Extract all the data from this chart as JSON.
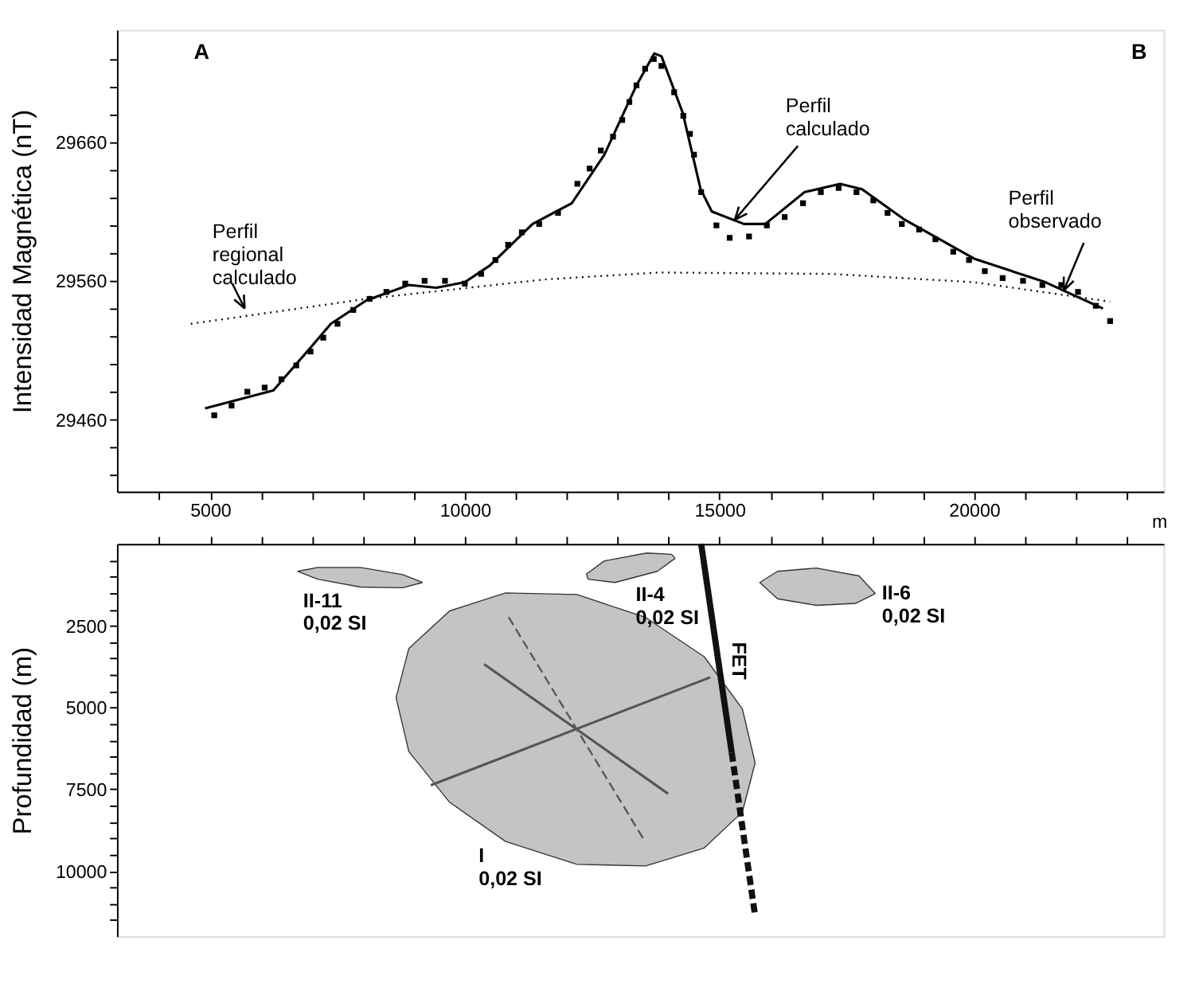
{
  "chart_data": [
    {
      "type": "line",
      "ylabel": "Intensidad Magnética (nT)",
      "xlabel": "m",
      "xlim": [
        3170,
        23720
      ],
      "ylim": [
        29408,
        29741
      ],
      "xticks": [
        {
          "value": 4000,
          "label": null
        },
        5000,
        {
          "value": 6000,
          "label": null
        },
        {
          "value": 7000,
          "label": null
        },
        {
          "value": 8000,
          "label": null
        },
        {
          "value": 9000,
          "label": null
        },
        10000,
        {
          "value": 11000,
          "label": null
        },
        {
          "value": 12000,
          "label": null
        },
        {
          "value": 13000,
          "label": null
        },
        {
          "value": 14000,
          "label": null
        },
        15000,
        {
          "value": 16000,
          "label": null
        },
        {
          "value": 17000,
          "label": null
        },
        {
          "value": 18000,
          "label": null
        },
        {
          "value": 19000,
          "label": null
        },
        20000,
        {
          "value": 21000,
          "label": null
        },
        {
          "value": 22000,
          "label": null
        },
        {
          "value": 23000,
          "label": null
        }
      ],
      "yticks": [
        {
          "value": 29420,
          "label": null
        },
        {
          "value": 29440,
          "label": null
        },
        29460,
        {
          "value": 29480,
          "label": null
        },
        {
          "value": 29500,
          "label": null
        },
        {
          "value": 29520,
          "label": null
        },
        {
          "value": 29540,
          "label": null
        },
        29560,
        {
          "value": 29580,
          "label": null
        },
        {
          "value": 29600,
          "label": null
        },
        {
          "value": 29620,
          "label": null
        },
        {
          "value": 29640,
          "label": null
        },
        29660,
        {
          "value": 29680,
          "label": null
        },
        {
          "value": 29700,
          "label": null
        },
        {
          "value": 29720,
          "label": null
        }
      ],
      "grid": false,
      "legend": false,
      "series": [
        {
          "type": "scatter",
          "marker": "square",
          "color": "#000000",
          "x": [
            5080,
            5420,
            5730,
            6070,
            6400,
            6690,
            6970,
            7220,
            7500,
            7810,
            8130,
            8460,
            8830,
            9210,
            9610,
            10000,
            10320,
            10600,
            10850,
            11120,
            11460,
            11830,
            12210,
            12450,
            12670,
            12910,
            13090,
            13230,
            13370,
            13540,
            13710,
            13860,
            14110,
            14290,
            14420,
            14500,
            14640,
            14940,
            15200,
            15580,
            15930,
            16280,
            16640,
            16990,
            17340,
            17690,
            18020,
            18300,
            18580,
            18920,
            19240,
            19590,
            19900,
            20210,
            20560,
            20960,
            21340,
            21710,
            22040,
            22390,
            22670
          ],
          "values": [
            29463,
            29470,
            29480,
            29483,
            29489,
            29499,
            29509,
            29519,
            29529,
            29539,
            29547,
            29552,
            29558,
            29560,
            29560,
            29558,
            29565,
            29575,
            29586,
            29595,
            29601,
            29609,
            29630,
            29641,
            29654,
            29664,
            29676,
            29689,
            29701,
            29713,
            29720,
            29715,
            29696,
            29679,
            29666,
            29651,
            29624,
            29600,
            29591,
            29592,
            29600,
            29606,
            29616,
            29624,
            29627,
            29624,
            29618,
            29609,
            29601,
            29597,
            29590,
            29581,
            29575,
            29567,
            29562,
            29560,
            29557,
            29557,
            29552,
            29542,
            29531
          ]
        },
        {
          "line_style": "solid",
          "color": "#000000",
          "x": [
            4900,
            6240,
            6950,
            7370,
            8070,
            8900,
            9440,
            10000,
            10490,
            11330,
            12100,
            12740,
            13370,
            13720,
            13860,
            14280,
            14630,
            14850,
            15480,
            15900,
            16670,
            17370,
            17800,
            18640,
            20000,
            21400,
            22530
          ],
          "values": [
            29468,
            29481,
            29511,
            29529,
            29546,
            29557,
            29555,
            29559,
            29571,
            29601,
            29616,
            29651,
            29701,
            29724,
            29722,
            29681,
            29626,
            29610,
            29601,
            29601,
            29624,
            29630,
            29626,
            29604,
            29576,
            29559,
            29540
          ]
        },
        {
          "line_style": "dotted",
          "color": "#000000",
          "x": [
            4620,
            8070,
            11570,
            13820,
            17190,
            20000,
            22670
          ],
          "values": [
            29529,
            29547,
            29561,
            29566,
            29565,
            29559,
            29545
          ]
        }
      ],
      "annotations": [
        "A",
        "B",
        {
          "text": "Perfil\ncalculado",
          "x": 15300,
          "y": 29604
        },
        "Perfil\nregional\ncalculado",
        {
          "text": "Perfil\nobservado",
          "x": 21760,
          "y": 29553
        }
      ]
    },
    {
      "type": "line",
      "ylabel": "Profundidad  (m)",
      "tick_labels": "y",
      "xlim": [
        3170,
        23720
      ],
      "ylim": [
        12000,
        0
      ],
      "xticks": [
        {
          "value": 4000,
          "label": null
        },
        {
          "value": 5000,
          "label": null
        },
        {
          "value": 6000,
          "label": null
        },
        {
          "value": 7000,
          "label": null
        },
        {
          "value": 8000,
          "label": null
        },
        {
          "value": 9000,
          "label": null
        },
        {
          "value": 10000,
          "label": null
        },
        {
          "value": 11000,
          "label": null
        },
        {
          "value": 12000,
          "label": null
        },
        {
          "value": 13000,
          "label": null
        },
        {
          "value": 14000,
          "label": null
        },
        {
          "value": 15000,
          "label": null
        },
        {
          "value": 16000,
          "label": null
        },
        {
          "value": 17000,
          "label": null
        },
        {
          "value": 18000,
          "label": null
        },
        {
          "value": 19000,
          "label": null
        },
        {
          "value": 20000,
          "label": null
        },
        {
          "value": 21000,
          "label": null
        },
        {
          "value": 22000,
          "label": null
        },
        {
          "value": 23000,
          "label": null
        }
      ],
      "yticks": [
        {
          "value": 500,
          "label": null
        },
        {
          "value": 1000,
          "label": null
        },
        {
          "value": 1500,
          "label": null
        },
        {
          "value": 2000,
          "label": null
        },
        2500,
        {
          "value": 3000,
          "label": null
        },
        {
          "value": 3500,
          "label": null
        },
        {
          "value": 4000,
          "label": null
        },
        {
          "value": 4500,
          "label": null
        },
        5000,
        {
          "value": 5500,
          "label": null
        },
        {
          "value": 6000,
          "label": null
        },
        {
          "value": 6500,
          "label": null
        },
        {
          "value": 7000,
          "label": null
        },
        7500,
        {
          "value": 8000,
          "label": null
        },
        {
          "value": 8500,
          "label": null
        },
        {
          "value": 9000,
          "label": null
        },
        {
          "value": 9500,
          "label": null
        },
        10000,
        {
          "value": 10500,
          "label": null
        },
        {
          "value": 11000,
          "label": null
        },
        {
          "value": 11500,
          "label": null
        }
      ],
      "grid": false,
      "legend": false,
      "series": [
        {
          "type": "area",
          "color": "#c4c4c4",
          "x": [
            15700,
            15450,
            14700,
            13550,
            12200,
            10800,
            9700,
            8900,
            8650,
            8900,
            9700,
            10800,
            12200,
            13550,
            14700,
            15450,
            15700
          ],
          "values": [
            6700,
            8200,
            9300,
            9850,
            9800,
            9100,
            7900,
            6350,
            4700,
            3200,
            2050,
            1500,
            1550,
            2250,
            3450,
            5050,
            6700
          ]
        },
        {
          "type": "area",
          "color": "#c4c4c4",
          "x": [
            9170,
            8780,
            7950,
            7110,
            6720,
            7110,
            7950,
            8780,
            9170
          ],
          "values": [
            1180,
            1340,
            1320,
            1080,
            840,
            720,
            720,
            940,
            1180
          ]
        },
        {
          "type": "area",
          "color": "#c4c4c4",
          "x": [
            14130,
            13780,
            12950,
            12420,
            12390,
            12740,
            13570,
            14060,
            14130
          ],
          "values": [
            440,
            840,
            1180,
            1080,
            920,
            520,
            280,
            320,
            440
          ]
        },
        {
          "type": "area",
          "color": "#c4c4c4",
          "x": [
            18060,
            17670,
            16900,
            16140,
            15790,
            16140,
            16900,
            17740,
            18060
          ],
          "values": [
            1520,
            1820,
            1880,
            1680,
            1180,
            840,
            740,
            980,
            1520
          ]
        },
        {
          "line_style": "solid",
          "color": "#555555",
          "x": [
            9330,
            14820
          ],
          "values": [
            7380,
            4080
          ]
        },
        {
          "line_style": "dashed",
          "color": "#555555",
          "x": [
            10860,
            13530
          ],
          "values": [
            2240,
            9080
          ]
        },
        {
          "line_style": "solid",
          "color": "#555555",
          "x": [
            10380,
            13990
          ],
          "values": [
            3680,
            7640
          ]
        },
        {
          "line_style": "solid",
          "color": "#111111",
          "x": [
            14640,
            15240
          ],
          "values": [
            0,
            6380
          ]
        },
        {
          "line_style": "dashed",
          "color": "#111111",
          "x": [
            15240,
            15700
          ],
          "values": [
            6380,
            11380
          ]
        }
      ],
      "annotations": [
        "II-11\n0,02 SI",
        "II-4\n0,02 SI",
        "II-6\n0,02 SI",
        "I\n0,02 SI",
        "FET"
      ]
    }
  ]
}
